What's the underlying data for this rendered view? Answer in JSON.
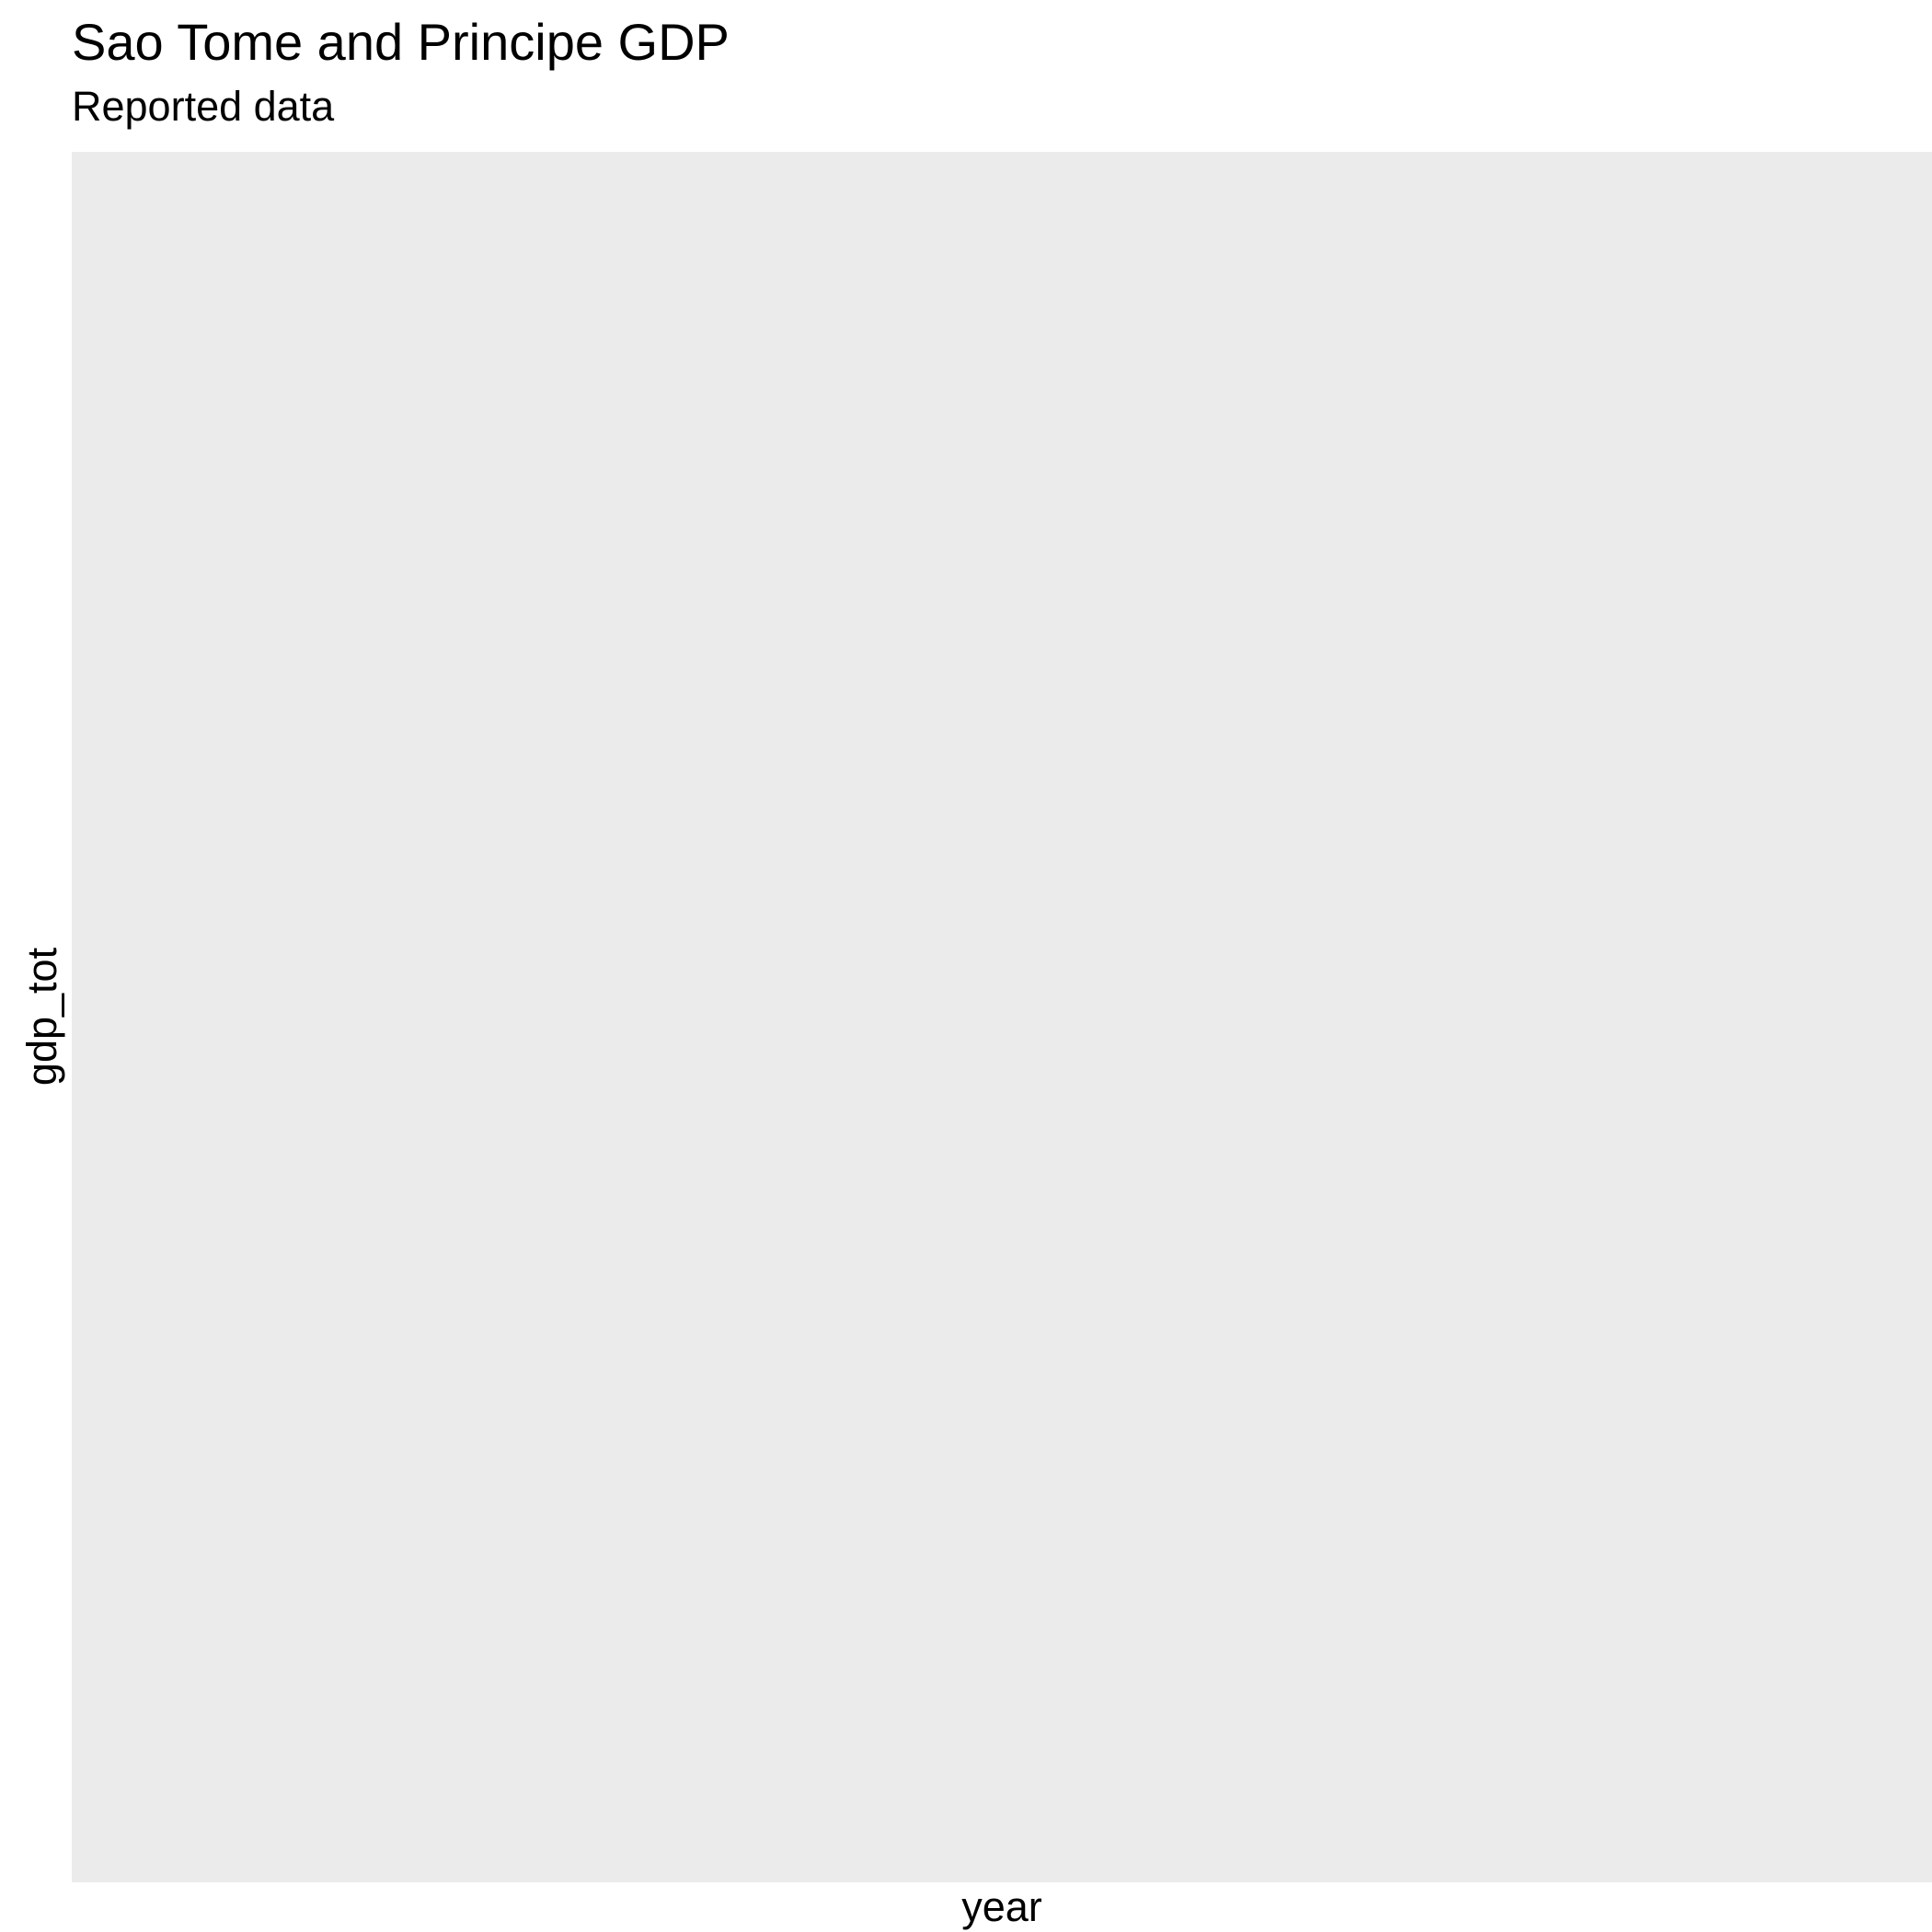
{
  "chart_data": {
    "type": "line",
    "title": "Sao Tome and Principe GDP",
    "subtitle": "Reported data",
    "xlabel": "year",
    "ylabel": "gdp_tot",
    "series": [],
    "grid": false,
    "legend": "none",
    "panel_color": "#EBEBEB"
  }
}
